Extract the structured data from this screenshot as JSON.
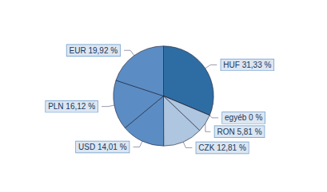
{
  "chart_data": {
    "type": "pie",
    "categories": [
      "HUF 31,33 %",
      "egyéb 0 %",
      "RON 5,81 %",
      "CZK 12,81 %",
      "USD 14,01 %",
      "PLN 16,12 %",
      "EUR 19,92 %"
    ],
    "values": [
      31.33,
      0.01,
      5.81,
      12.81,
      14.01,
      16.12,
      19.92
    ],
    "colors": [
      "#2e6da4",
      "#c5d9f0",
      "#aec6df",
      "#aec6df",
      "#5b8dc4",
      "#5b8dc4",
      "#5b8dc4"
    ]
  }
}
